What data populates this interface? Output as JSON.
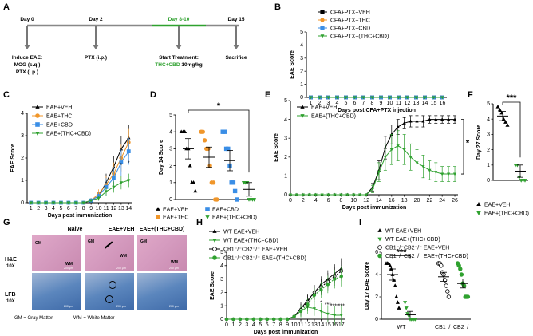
{
  "panel_letters": {
    "A": "A",
    "B": "B",
    "C": "C",
    "D": "D",
    "E": "E",
    "F": "F",
    "G": "G",
    "H": "H",
    "I": "I"
  },
  "colors": {
    "veh": "#000000",
    "thc": "#f0962a",
    "cbd": "#3a8ee6",
    "combo": "#2fa12f",
    "timeline_green": "#2fa12f",
    "he_bg": "#d59bbf",
    "lfb_bg": "#5b86bd"
  },
  "timeline": {
    "day0_label": "Day 0",
    "day2_label": "Day 2",
    "day810_label": "Day 8-10",
    "day15_label": "Day 15",
    "induce_line1": "Induce EAE:",
    "induce_line2": "MOG (s.q.)",
    "induce_line3": "PTX (i.p.)",
    "ptx_label": "PTX (i.p.)",
    "start_line1": "Start Treatment:",
    "start_highlight": "THC+CBD",
    "start_rest": " 10mg/kg",
    "sacrifice_label": "Sacrifice"
  },
  "histology": {
    "col_naive": "Naive",
    "col_veh": "EAE+VEH",
    "col_combo": "EAE+(THC+CBD)",
    "row_he": "H&E",
    "row_he_mag": "10X",
    "row_lfb": "LFB",
    "row_lfb_mag": "10X",
    "gm": "GM",
    "wm": "WM",
    "scale": "200 μm",
    "footnote_gm": "GM = Gray Matter",
    "footnote_wm": "WM = White Matter"
  },
  "chart_data": [
    {
      "id": "B",
      "type": "line",
      "title": "",
      "xlabel": "Days post CFA+PTX injection",
      "ylabel": "EAE Score",
      "x": [
        1,
        2,
        3,
        4,
        5,
        6,
        7,
        8,
        9,
        10,
        11,
        12,
        13,
        14,
        15,
        16
      ],
      "xlim": [
        0.5,
        16.5
      ],
      "ylim": [
        0,
        5
      ],
      "yticks": [
        0,
        1,
        2,
        3,
        4,
        5
      ],
      "series": [
        {
          "name": "CFA+PTX+VEH",
          "values": [
            0,
            0,
            0,
            0,
            0,
            0,
            0,
            0,
            0,
            0,
            0,
            0,
            0,
            0,
            0,
            0
          ]
        },
        {
          "name": "CFA+PTX+THC",
          "values": [
            0,
            0,
            0,
            0,
            0,
            0,
            0,
            0,
            0,
            0,
            0,
            0,
            0,
            0,
            0,
            0
          ]
        },
        {
          "name": "CFA+PTX+CBD",
          "values": [
            0,
            0,
            0,
            0,
            0,
            0,
            0,
            0,
            0,
            0,
            0,
            0,
            0,
            0,
            0,
            0
          ]
        },
        {
          "name": "CFA+PTX+(THC+CBD)",
          "values": [
            0,
            0,
            0,
            0,
            0,
            0,
            0,
            0,
            0,
            0,
            0,
            0,
            0,
            0,
            0,
            0
          ]
        }
      ]
    },
    {
      "id": "C",
      "type": "line",
      "xlabel": "Days post immunization",
      "ylabel": "EAE Score",
      "x": [
        1,
        2,
        3,
        4,
        5,
        6,
        7,
        8,
        9,
        10,
        11,
        12,
        13,
        14
      ],
      "xlim": [
        0.5,
        14.5
      ],
      "ylim": [
        0,
        4
      ],
      "yticks": [
        0,
        1,
        2,
        3,
        4
      ],
      "series": [
        {
          "name": "EAE+VEH",
          "values": [
            0,
            0,
            0,
            0,
            0,
            0,
            0,
            0,
            0.1,
            0.3,
            0.9,
            1.6,
            2.4,
            2.9
          ]
        },
        {
          "name": "EAE+THC",
          "values": [
            0,
            0,
            0,
            0,
            0,
            0,
            0,
            0,
            0.1,
            0.4,
            0.8,
            1.3,
            2.0,
            2.7
          ]
        },
        {
          "name": "EAE+CBD",
          "values": [
            0,
            0,
            0,
            0,
            0,
            0,
            0,
            0,
            0.1,
            0.3,
            0.7,
            1.1,
            1.8,
            2.3
          ]
        },
        {
          "name": "EAE+(THC+CBD)",
          "values": [
            0,
            0,
            0,
            0,
            0,
            0,
            0,
            0,
            0.1,
            0.2,
            0.5,
            0.7,
            0.9,
            1.0
          ]
        }
      ],
      "errors": [
        0,
        0,
        0,
        0,
        0,
        0,
        0,
        0,
        0.1,
        0.2,
        0.4,
        0.5,
        0.6,
        0.6
      ],
      "annotations": [
        "*",
        "*",
        "*"
      ]
    },
    {
      "id": "D",
      "type": "scatter",
      "ylabel": "Day 14 Score",
      "ylim": [
        0,
        5
      ],
      "yticks": [
        0,
        1,
        2,
        3,
        4,
        5
      ],
      "groups": [
        {
          "name": "EAE+VEH",
          "mean": 3.0,
          "sem": 0.6,
          "points": [
            4,
            4,
            4,
            3,
            3,
            2,
            1,
            1,
            0.5
          ]
        },
        {
          "name": "EAE+THC",
          "mean": 2.5,
          "sem": 0.6,
          "points": [
            4,
            4,
            3.5,
            3,
            3,
            2,
            1,
            1,
            0,
            0
          ]
        },
        {
          "name": "EAE+CBD",
          "mean": 2.3,
          "sem": 0.6,
          "points": [
            4,
            4,
            3,
            3,
            2,
            1,
            1,
            0.5,
            0
          ]
        },
        {
          "name": "EAE+(THC+CBD)",
          "mean": 0.6,
          "sem": 0.4,
          "points": [
            1,
            1,
            1,
            0,
            0,
            0,
            0
          ]
        }
      ],
      "significance": "*"
    },
    {
      "id": "E",
      "type": "line",
      "xlabel": "Days post immunization",
      "ylabel": "EAE Score",
      "x": [
        0,
        1,
        2,
        3,
        4,
        5,
        6,
        7,
        8,
        9,
        10,
        11,
        12,
        13,
        14,
        15,
        16,
        17,
        18,
        19,
        20,
        21,
        22,
        23,
        24,
        25,
        26
      ],
      "xlim": [
        0,
        26.5
      ],
      "ylim": [
        0,
        5
      ],
      "yticks": [
        0,
        1,
        2,
        3,
        4,
        5
      ],
      "xticks": [
        0,
        2,
        4,
        6,
        8,
        10,
        12,
        14,
        16,
        18,
        20,
        22,
        24,
        26
      ],
      "series": [
        {
          "name": "EAE+VEH",
          "values": [
            0,
            0,
            0,
            0,
            0,
            0,
            0,
            0,
            0,
            0,
            0,
            0,
            0,
            0.4,
            1.3,
            2.5,
            3.2,
            3.6,
            3.8,
            3.9,
            3.9,
            3.9,
            4,
            4,
            4,
            4,
            4
          ]
        },
        {
          "name": "EAE+(THC+CBD)",
          "values": [
            0,
            0,
            0,
            0,
            0,
            0,
            0,
            0,
            0,
            0,
            0,
            0,
            0,
            0.3,
            1.2,
            2.0,
            2.4,
            2.6,
            2.4,
            2.0,
            1.7,
            1.5,
            1.3,
            1.2,
            1.1,
            1.1,
            1.1
          ]
        }
      ],
      "errors_veh": [
        0,
        0,
        0,
        0,
        0,
        0,
        0,
        0,
        0,
        0,
        0,
        0,
        0,
        0.2,
        0.5,
        0.6,
        0.5,
        0.4,
        0.3,
        0.3,
        0.3,
        0.3,
        0.2,
        0.2,
        0.2,
        0.2,
        0.2
      ],
      "errors_combo": [
        0,
        0,
        0,
        0,
        0,
        0,
        0,
        0,
        0,
        0,
        0,
        0,
        0,
        0.2,
        0.5,
        0.7,
        0.8,
        0.8,
        0.8,
        0.7,
        0.7,
        0.6,
        0.5,
        0.5,
        0.4,
        0.4,
        0.4
      ],
      "significance": "*"
    },
    {
      "id": "F",
      "type": "scatter",
      "ylabel": "Day 27 Score",
      "ylim": [
        0,
        5
      ],
      "yticks": [
        0,
        1,
        2,
        3,
        4,
        5
      ],
      "groups": [
        {
          "name": "EAE+VEH",
          "mean": 4.2,
          "sem": 0.3,
          "points": [
            4.8,
            4.6,
            4.4,
            4,
            3.8,
            3.6
          ]
        },
        {
          "name": "EAE+(THC+CBD)",
          "mean": 0.6,
          "sem": 0.4,
          "points": [
            1,
            1,
            0.2,
            0,
            0,
            0
          ]
        }
      ],
      "significance": "***"
    },
    {
      "id": "H",
      "type": "line",
      "xlabel": "Days post immunization",
      "ylabel": "EAE Score",
      "x": [
        0,
        1,
        2,
        3,
        4,
        5,
        6,
        7,
        8,
        9,
        10,
        11,
        12,
        13,
        14,
        15,
        16,
        17
      ],
      "xlim": [
        0,
        17.5
      ],
      "ylim": [
        0,
        5
      ],
      "yticks": [
        0,
        1,
        2,
        3,
        4,
        5
      ],
      "series": [
        {
          "name": "WT EAE+VEH",
          "values": [
            0,
            0,
            0,
            0,
            0,
            0,
            0,
            0,
            0,
            0,
            0.2,
            0.8,
            1.4,
            2.0,
            2.6,
            3.0,
            3.4,
            3.8
          ]
        },
        {
          "name": "WT EAE+(THC+CBD)",
          "values": [
            0,
            0,
            0,
            0,
            0,
            0,
            0,
            0,
            0,
            0,
            0.2,
            0.6,
            0.9,
            0.8,
            0.6,
            0.4,
            0.3,
            0.3
          ]
        },
        {
          "name": "CB1-/-CB2-/- EAE+VEH",
          "values": [
            0,
            0,
            0,
            0,
            0,
            0,
            0,
            0,
            0,
            0,
            0.2,
            0.7,
            1.3,
            2.0,
            2.4,
            2.8,
            3.2,
            3.6
          ]
        },
        {
          "name": "CB1-/-CB2-/- EAE+(THC+CBD)",
          "values": [
            0,
            0,
            0,
            0,
            0,
            0,
            0,
            0,
            0,
            0,
            0.2,
            0.6,
            1.1,
            1.8,
            2.2,
            2.6,
            3.0,
            3.2
          ]
        }
      ],
      "annotations": [
        "*",
        "***",
        "****",
        "***"
      ]
    },
    {
      "id": "I",
      "type": "scatter",
      "ylabel": "Day 17 EAE Score",
      "ylim": [
        0,
        6
      ],
      "yticks": [
        0,
        2,
        4,
        6
      ],
      "xcategories": [
        "WT",
        "CB1-/-CB2-/-"
      ],
      "groups": [
        {
          "name": "WT EAE+VEH",
          "mean": 4.0,
          "sem": 0.5,
          "points": [
            5,
            5,
            5,
            4.8,
            4.5,
            4,
            3.5,
            3,
            2,
            1.5,
            1
          ]
        },
        {
          "name": "WT EAE+(THC+CBD)",
          "mean": 0.4,
          "sem": 0.3,
          "points": [
            1.5,
            1,
            0.5,
            0.3,
            0,
            0,
            0,
            0,
            0
          ]
        },
        {
          "name": "CB1-/-CB2-/- EAE+VEH",
          "mean": 3.8,
          "sem": 0.4,
          "points": [
            5,
            5,
            4.8,
            4.2,
            4,
            3.5,
            3,
            2.5,
            2
          ]
        },
        {
          "name": "CB1-/-CB2-/- EAE+(THC+CBD)",
          "mean": 3.2,
          "sem": 0.4,
          "points": [
            5,
            4.8,
            4.5,
            4,
            3.2,
            3,
            2,
            2,
            2
          ]
        }
      ],
      "significance": "***"
    }
  ],
  "legends": {
    "B": [
      "CFA+PTX+VEH",
      "CFA+PTX+THC",
      "CFA+PTX+CBD",
      "CFA+PTX+(THC+CBD)"
    ],
    "C": [
      "EAE+VEH",
      "EAE+THC",
      "EAE+CBD",
      "EAE+(THC+CBD)"
    ],
    "D": [
      "EAE+VEH",
      "EAE+CBD",
      "EAE+THC",
      "EAE+(THC+CBD)"
    ],
    "E": [
      "EAE+VEH",
      "EAE+(THC+CBD)"
    ],
    "F": [
      "EAE+VEH",
      "EAE+(THC+CBD)"
    ],
    "H": [
      "WT EAE+VEH",
      "WT EAE+(THC+CBD)",
      "CB1⁻/⁻CB2⁻/⁻ EAE+VEH",
      "CB1⁻/⁻CB2⁻/⁻ EAE+(THC+CBD)"
    ],
    "I": [
      "WT EAE+VEH",
      "WT EAE+(THC+CBD)",
      "CB1⁻/⁻CB2⁻/⁻ EAE+VEH",
      "CB1⁻/⁻CB2⁻/⁻ EAE+(THC+CBD)"
    ]
  },
  "i_xlabels": [
    "WT",
    "CB1⁻/⁻CB2⁻/⁻"
  ]
}
